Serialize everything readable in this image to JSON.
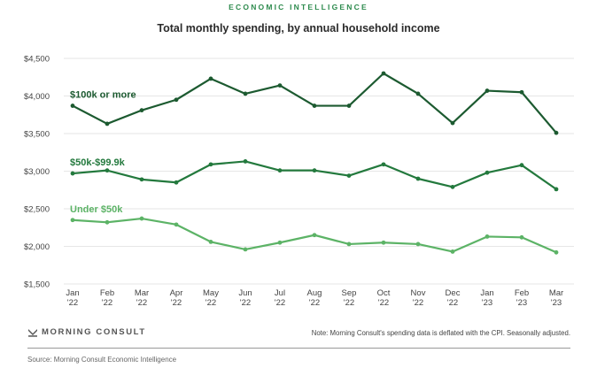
{
  "header": {
    "eyebrow": "ECONOMIC INTELLIGENCE",
    "title": "Total monthly spending, by annual household income"
  },
  "footer": {
    "logo_icon": "morning-consult-m-icon",
    "logo_text": "MORNING CONSULT",
    "note": "Note: Morning Consult's spending data is deflated with the CPI. Seasonally adjusted.",
    "source": "Source: Morning Consult Economic Intelligence"
  },
  "colors": {
    "high": "#1c5a30",
    "mid": "#23793d",
    "low": "#5cb366",
    "grid": "#e6e6e6",
    "eyebrow": "#2e8b4e"
  },
  "chart_data": {
    "type": "line",
    "title": "Total monthly spending, by annual household income",
    "xlabel": "",
    "ylabel": "",
    "ylim": [
      1500,
      4500
    ],
    "grid": true,
    "legend": "inline-labels-left",
    "y_ticks": [
      {
        "value": 4500,
        "label": "$4,500"
      },
      {
        "value": 4000,
        "label": "$4,000"
      },
      {
        "value": 3500,
        "label": "$3,500"
      },
      {
        "value": 3000,
        "label": "$3,000"
      },
      {
        "value": 2500,
        "label": "$2,500"
      },
      {
        "value": 2000,
        "label": "$2,000"
      },
      {
        "value": 1500,
        "label": "$1,500"
      }
    ],
    "categories": [
      {
        "month": "Jan",
        "year": "'22"
      },
      {
        "month": "Feb",
        "year": "'22"
      },
      {
        "month": "Mar",
        "year": "'22"
      },
      {
        "month": "Apr",
        "year": "'22"
      },
      {
        "month": "May",
        "year": "'22"
      },
      {
        "month": "Jun",
        "year": "'22"
      },
      {
        "month": "Jul",
        "year": "'22"
      },
      {
        "month": "Aug",
        "year": "'22"
      },
      {
        "month": "Sep",
        "year": "'22"
      },
      {
        "month": "Oct",
        "year": "'22"
      },
      {
        "month": "Nov",
        "year": "'22"
      },
      {
        "month": "Dec",
        "year": "'22"
      },
      {
        "month": "Jan",
        "year": "'23"
      },
      {
        "month": "Feb",
        "year": "'23"
      },
      {
        "month": "Mar",
        "year": "'23"
      }
    ],
    "series": [
      {
        "key": "high",
        "name": "$100k or more",
        "color": "#1c5a30",
        "values": [
          3870,
          3630,
          3810,
          3950,
          4230,
          4030,
          4140,
          3870,
          3870,
          4300,
          4030,
          3640,
          4070,
          4050,
          3510
        ]
      },
      {
        "key": "mid",
        "name": "$50k-$99.9k",
        "color": "#23793d",
        "values": [
          2970,
          3010,
          2890,
          2850,
          3090,
          3130,
          3010,
          3010,
          2940,
          3090,
          2900,
          2790,
          2980,
          3080,
          2760
        ]
      },
      {
        "key": "low",
        "name": "Under $50k",
        "color": "#5cb366",
        "values": [
          2350,
          2320,
          2370,
          2290,
          2060,
          1960,
          2050,
          2150,
          2030,
          2050,
          2030,
          1930,
          2130,
          2120,
          1920
        ]
      }
    ]
  }
}
